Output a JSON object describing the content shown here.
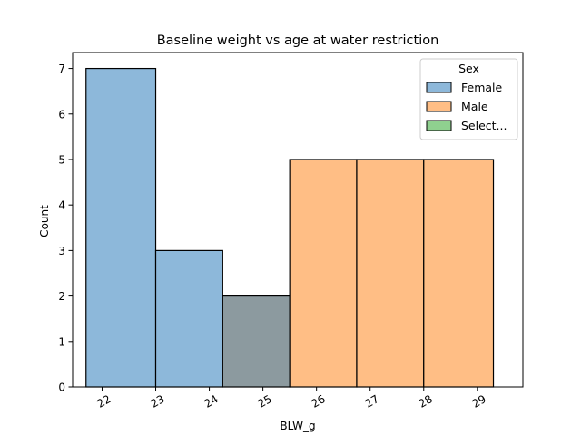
{
  "chart_data": {
    "type": "bar",
    "title": "Baseline weight vs age at water restriction",
    "xlabel": "BLW_g",
    "ylabel": "Count",
    "x_ticks": [
      22,
      23,
      24,
      25,
      26,
      27,
      28,
      29
    ],
    "xlim": [
      21.45,
      29.85
    ],
    "y_ticks": [
      0,
      1,
      2,
      3,
      4,
      5,
      6,
      7
    ],
    "ylim": [
      0,
      7.35
    ],
    "bin_edges": [
      21.7,
      23.0,
      24.25,
      25.5,
      26.75,
      28.0,
      29.3
    ],
    "series": [
      {
        "name": "Female",
        "color": "#8db8da",
        "values": [
          7,
          3,
          2,
          0,
          0,
          0
        ]
      },
      {
        "name": "Male",
        "color": "#ffbe85",
        "values": [
          0,
          0,
          2,
          5,
          5,
          5
        ]
      },
      {
        "name": "Select...",
        "color": "#8fd08f",
        "values": [
          0,
          0,
          0,
          0,
          0,
          0
        ]
      }
    ],
    "overlap_color": "#8c9a9f",
    "legend": {
      "title": "Sex",
      "placement": "top-right",
      "entries": [
        "Female",
        "Male",
        "Select..."
      ]
    },
    "grid": false
  }
}
